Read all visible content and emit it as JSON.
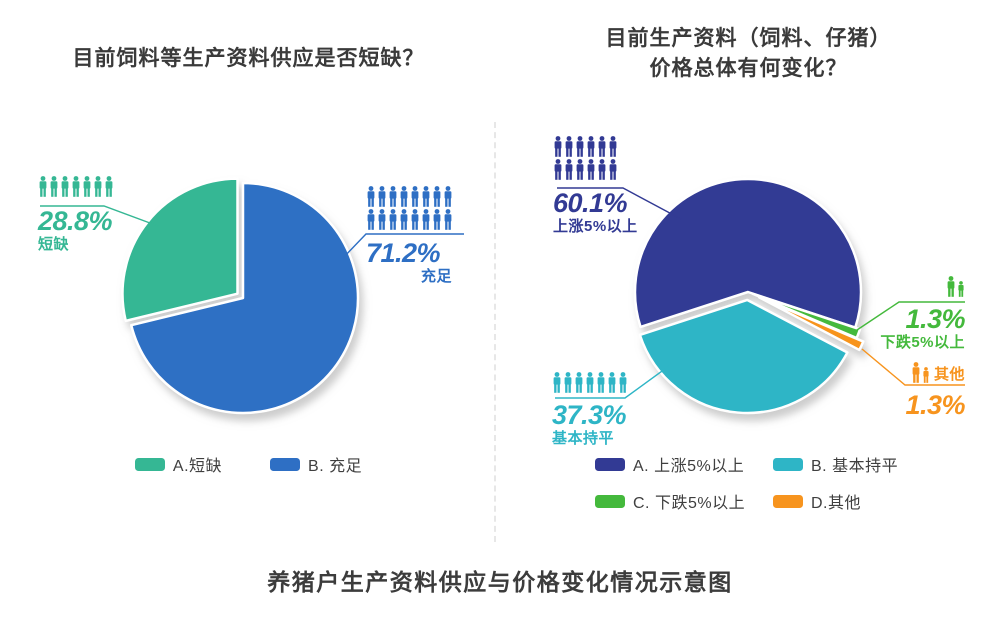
{
  "caption": "养猪户生产资料供应与价格变化情况示意图",
  "colors": {
    "teal": "#35b794",
    "blue": "#2e6fc4",
    "navy": "#323a94",
    "cyan": "#2eb5c6",
    "green": "#44b93c",
    "orange": "#f7941e",
    "title_text": "#3a3a3a",
    "shadow": "#c4c4c4"
  },
  "charts": [
    {
      "title_lines": [
        "目前饲料等生产资料供应是否短缺？"
      ],
      "callouts": {
        "shortage": {
          "pct": "28.8%",
          "label": "短缺",
          "people": {
            "count": 7,
            "rows": 1
          }
        },
        "sufficient": {
          "pct": "71.2%",
          "label": "充足",
          "people": {
            "count": 16,
            "rows": 2
          }
        }
      },
      "legend": [
        {
          "label": "A.短缺",
          "color": "#35b794"
        },
        {
          "label": "B. 充足",
          "color": "#2e6fc4"
        }
      ]
    },
    {
      "title_lines": [
        "目前生产资料（饲料、仔猪）",
        "价格总体有何变化？"
      ],
      "callouts": {
        "up": {
          "pct": "60.1%",
          "label": "上涨5%以上",
          "people": {
            "count": 12,
            "rows": 2
          }
        },
        "flat": {
          "pct": "37.3%",
          "label": "基本持平",
          "people": {
            "count": 7,
            "rows": 1
          }
        },
        "down": {
          "pct": "1.3%",
          "label": "下跌5%以上",
          "people": {
            "count": 2,
            "rows": 1,
            "pair": true
          }
        },
        "other": {
          "pct": "1.3%",
          "label": "其他",
          "people": {
            "count": 2,
            "rows": 1,
            "pair": true
          }
        }
      },
      "legend": [
        {
          "label": "A. 上涨5%以上",
          "color": "#323a94"
        },
        {
          "label": "B. 基本持平",
          "color": "#2eb5c6"
        },
        {
          "label": "C. 下跌5%以上",
          "color": "#44b93c"
        },
        {
          "label": "D.其他",
          "color": "#f7941e"
        }
      ]
    }
  ],
  "chart_data": [
    {
      "type": "pie",
      "title": "目前饲料等生产资料供应是否短缺？",
      "unit": "%",
      "start_angle_deg": 0,
      "slices": [
        {
          "key": "sufficient",
          "label": "B. 充足",
          "value": 71.2,
          "color": "#2e6fc4",
          "explode": 0
        },
        {
          "key": "shortage",
          "label": "A.短缺",
          "value": 28.8,
          "color": "#35b794",
          "explode": 7
        }
      ]
    },
    {
      "type": "pie",
      "title": "目前生产资料（饲料、仔猪）价格总体有何变化？",
      "unit": "%",
      "start_angle_deg": 252,
      "slices": [
        {
          "key": "up",
          "label": "A. 上涨5%以上",
          "value": 60.1,
          "color": "#323a94",
          "explode": 0
        },
        {
          "key": "down",
          "label": "C. 下跌5%以上",
          "value": 1.3,
          "color": "#44b93c",
          "explode": 5
        },
        {
          "key": "other",
          "label": "D.其他",
          "value": 1.3,
          "color": "#f7941e",
          "explode": 12.5
        },
        {
          "key": "flat",
          "label": "B. 基本持平",
          "value": 37.3,
          "color": "#2eb5c6",
          "explode": 8
        }
      ]
    }
  ]
}
